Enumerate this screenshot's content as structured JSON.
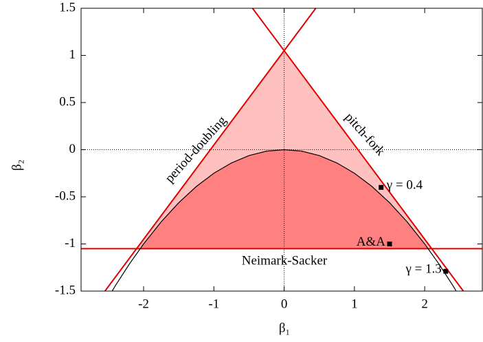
{
  "chart_data": {
    "type": "line",
    "xlabel": "β₁",
    "ylabel": "β₂",
    "xlim": [
      -2.89,
      2.82
    ],
    "ylim": [
      -1.5,
      1.5
    ],
    "xticks": [
      -2,
      -1,
      0,
      1,
      2
    ],
    "yticks": [
      -1.5,
      -1,
      -0.5,
      0,
      0.5,
      1,
      1.5
    ],
    "zero_lines": true,
    "regions": [
      {
        "color": "#ffc0c0",
        "x": [
          -2.1,
          0,
          2.1
        ],
        "values": [
          -1.05,
          1.05,
          -1.05
        ]
      },
      {
        "color": "#ff8080",
        "x": [
          -2.05,
          -1.75,
          -1.5,
          -1.25,
          -1,
          -0.75,
          -0.5,
          -0.25,
          0,
          0.25,
          0.5,
          0.75,
          1,
          1.25,
          1.5,
          1.75,
          2.05
        ],
        "values": [
          -1.05,
          -0.765625,
          -0.5625,
          -0.390625,
          -0.25,
          -0.140625,
          -0.0625,
          -0.015625,
          0,
          -0.015625,
          -0.0625,
          -0.140625,
          -0.25,
          -0.390625,
          -0.5625,
          -0.765625,
          -1.05
        ]
      }
    ],
    "series": [
      {
        "name": "period-doubling",
        "color": "#e00000",
        "x": [
          -2.55,
          0.45
        ],
        "values": [
          -1.5,
          1.5
        ]
      },
      {
        "name": "pitch-fork",
        "color": "#e00000",
        "x": [
          -0.45,
          2.55
        ],
        "values": [
          1.5,
          -1.5
        ]
      },
      {
        "name": "Neimark-Sacker",
        "color": "#e00000",
        "x": [
          -2.89,
          2.82
        ],
        "values": [
          -1.05,
          -1.05
        ]
      },
      {
        "color": "#000000",
        "x": [
          -2.6,
          -2.4,
          -2.2,
          -2,
          -1.75,
          -1.5,
          -1.25,
          -1,
          -0.75,
          -0.5,
          -0.25,
          0,
          0.25,
          0.5,
          0.75,
          1,
          1.25,
          1.5,
          1.75,
          2,
          2.2,
          2.4,
          2.6
        ],
        "values": [
          -1.69,
          -1.44,
          -1.21,
          -1,
          -0.765625,
          -0.5625,
          -0.390625,
          -0.25,
          -0.140625,
          -0.0625,
          -0.015625,
          0,
          -0.015625,
          -0.0625,
          -0.140625,
          -0.25,
          -0.390625,
          -0.5625,
          -0.765625,
          -1,
          -1.21,
          -1.44,
          -1.69
        ]
      }
    ],
    "points": [
      {
        "label": "γ = 0.4",
        "x": 1.38,
        "y": -0.4,
        "label_side": "right"
      },
      {
        "label": "A&A",
        "x": 1.5,
        "y": -1.0,
        "label_side": "left"
      },
      {
        "label": "γ = 1.3",
        "x": 2.3,
        "y": -1.29,
        "label_side": "left"
      }
    ]
  }
}
